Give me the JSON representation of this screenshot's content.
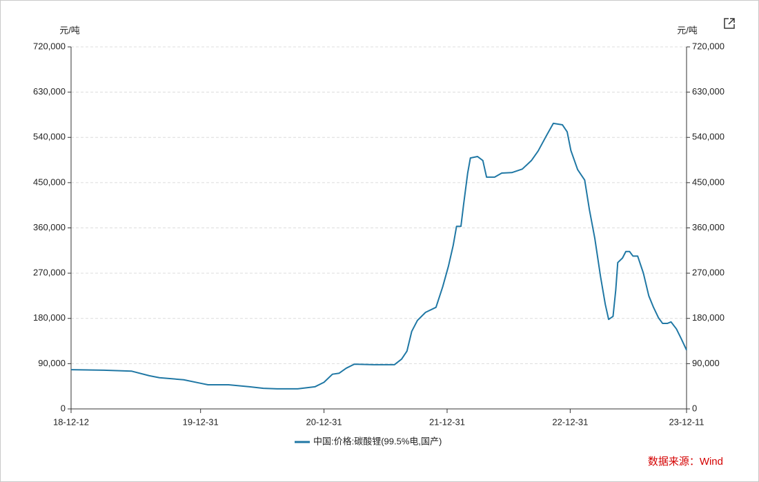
{
  "chart_data": {
    "type": "line",
    "y_label": "元/吨",
    "y2_label": "元/吨",
    "source": "数据来源：Wind",
    "x": [
      "18-12-12",
      "19-03-20",
      "19-06-10",
      "19-08-01",
      "19-08-31",
      "19-11-11",
      "19-12-31",
      "20-01-22",
      "20-03-23",
      "20-05-24",
      "20-07-04",
      "20-08-14",
      "20-10-14",
      "20-12-04",
      "20-12-31",
      "21-01-25",
      "21-02-14",
      "21-03-07",
      "21-03-31",
      "21-05-28",
      "21-07-28",
      "21-08-18",
      "21-09-03",
      "21-09-17",
      "21-10-04",
      "21-10-28",
      "21-11-28",
      "21-12-18",
      "22-01-04",
      "22-01-18",
      "22-01-28",
      "22-02-10",
      "22-02-18",
      "22-03-02",
      "22-03-10",
      "22-03-31",
      "22-04-16",
      "22-04-27",
      "22-05-21",
      "22-06-11",
      "22-07-11",
      "22-08-11",
      "22-09-07",
      "22-09-27",
      "22-10-22",
      "22-11-11",
      "22-12-08",
      "22-12-22",
      "23-01-02",
      "23-01-22",
      "23-02-12",
      "23-02-26",
      "23-03-14",
      "23-03-31",
      "23-04-14",
      "23-04-24",
      "23-05-07",
      "23-05-15",
      "23-05-21",
      "23-06-04",
      "23-06-14",
      "23-06-25",
      "23-07-05",
      "23-07-19",
      "23-08-05",
      "23-08-21",
      "23-09-04",
      "23-09-19",
      "23-10-01",
      "23-10-15",
      "23-10-26",
      "23-11-11",
      "23-11-25",
      "23-12-11"
    ],
    "series": [
      {
        "name": "中国:价格:碳酸锂(99.5%电,国产)",
        "color": "#1f77a4",
        "values": [
          78000,
          77000,
          75000,
          66000,
          62000,
          58000,
          51000,
          48000,
          48000,
          44000,
          41000,
          40000,
          40000,
          44000,
          53000,
          69000,
          71000,
          81000,
          89000,
          88000,
          88000,
          99000,
          115000,
          154000,
          176000,
          192000,
          202000,
          243000,
          284000,
          325000,
          363000,
          363000,
          407000,
          469000,
          499000,
          502000,
          494000,
          461000,
          461000,
          469000,
          470000,
          477000,
          494000,
          513000,
          544000,
          568000,
          565000,
          551000,
          514000,
          476000,
          455000,
          396000,
          339000,
          263000,
          208000,
          178000,
          184000,
          236000,
          291000,
          300000,
          313000,
          313000,
          304000,
          304000,
          270000,
          225000,
          202000,
          181000,
          170000,
          170000,
          173000,
          159000,
          140000,
          117000
        ]
      }
    ],
    "xlim": [
      "18-12-12",
      "23-12-11"
    ],
    "xticks": [
      "18-12-12",
      "19-12-31",
      "20-12-31",
      "21-12-31",
      "22-12-31",
      "23-12-11"
    ],
    "ylim": [
      0,
      720000
    ],
    "yticks": [
      0,
      {
        "value": 90000,
        "label": "90,000"
      },
      {
        "value": 180000,
        "label": "180,000"
      },
      {
        "value": 270000,
        "label": "270,000"
      },
      {
        "value": 360000,
        "label": "360,000"
      },
      {
        "value": 450000,
        "label": "450,000"
      },
      {
        "value": 540000,
        "label": "540,000"
      },
      {
        "value": 630000,
        "label": "630,000"
      },
      {
        "value": 720000,
        "label": "720,000"
      }
    ],
    "y2lim": [
      0,
      720000
    ],
    "y2ticks": [
      0,
      {
        "value": 90000,
        "label": "90,000"
      },
      {
        "value": 180000,
        "label": "180,000"
      },
      {
        "value": 270000,
        "label": "270,000"
      },
      {
        "value": 360000,
        "label": "360,000"
      },
      {
        "value": 450000,
        "label": "450,000"
      },
      {
        "value": 540000,
        "label": "540,000"
      },
      {
        "value": 630000,
        "label": "630,000"
      },
      {
        "value": 720000,
        "label": "720,000"
      }
    ],
    "grid": true,
    "legend": "bottom"
  }
}
